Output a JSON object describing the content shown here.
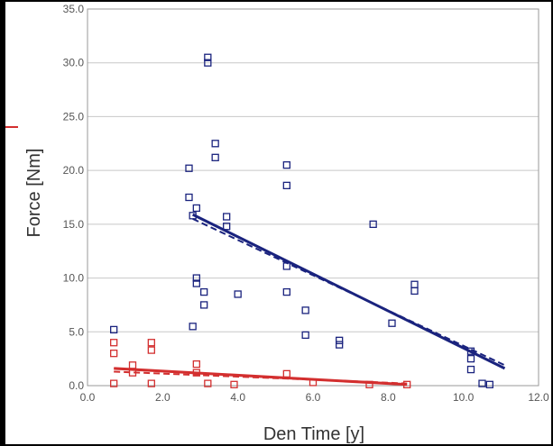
{
  "chart_data": {
    "type": "scatter",
    "xlabel": "Den Time [y]",
    "ylabel": "Force [Nm]",
    "xlim": [
      0,
      12
    ],
    "ylim": [
      0,
      35
    ],
    "xticks": [
      0,
      2,
      4,
      6,
      8,
      10,
      12
    ],
    "yticks": [
      0,
      5,
      10,
      15,
      20,
      25,
      30,
      35
    ],
    "xtick_labels": [
      "0.0",
      "2.0",
      "4.0",
      "6.0",
      "8.0",
      "10.0",
      "12.0"
    ],
    "ytick_labels": [
      "0.0",
      "5.0",
      "10.0",
      "15.0",
      "20.0",
      "25.0",
      "30.0",
      "35.0"
    ],
    "grid": "horizontal",
    "legend": "none",
    "series": [
      {
        "color": "#1a237e",
        "marker": "square",
        "points": [
          [
            0.7,
            5.2
          ],
          [
            2.7,
            20.2
          ],
          [
            2.7,
            17.5
          ],
          [
            2.9,
            16.5
          ],
          [
            2.8,
            15.8
          ],
          [
            2.9,
            10
          ],
          [
            2.9,
            9.5
          ],
          [
            2.8,
            5.5
          ],
          [
            3.2,
            30.5
          ],
          [
            3.2,
            30
          ],
          [
            3.4,
            22.5
          ],
          [
            3.4,
            21.2
          ],
          [
            3.1,
            8.7
          ],
          [
            3.1,
            7.5
          ],
          [
            3.7,
            15.7
          ],
          [
            3.7,
            14.8
          ],
          [
            4.0,
            8.5
          ],
          [
            5.3,
            20.5
          ],
          [
            5.3,
            18.6
          ],
          [
            5.3,
            11.1
          ],
          [
            5.3,
            8.7
          ],
          [
            5.8,
            7.0
          ],
          [
            5.8,
            4.7
          ],
          [
            6.7,
            4.2
          ],
          [
            6.7,
            3.8
          ],
          [
            7.6,
            15.0
          ],
          [
            8.7,
            9.4
          ],
          [
            8.7,
            8.8
          ],
          [
            8.1,
            5.8
          ],
          [
            10.2,
            3.2
          ],
          [
            10.2,
            2.5
          ],
          [
            10.2,
            1.5
          ],
          [
            10.5,
            0.2
          ],
          [
            10.7,
            0.1
          ]
        ]
      },
      {
        "color": "#d32f2f",
        "marker": "square",
        "points": [
          [
            0.7,
            4.0
          ],
          [
            0.7,
            3.0
          ],
          [
            0.7,
            0.2
          ],
          [
            1.2,
            1.9
          ],
          [
            1.2,
            1.2
          ],
          [
            1.7,
            4.0
          ],
          [
            1.7,
            3.3
          ],
          [
            1.7,
            0.2
          ],
          [
            2.9,
            2.0
          ],
          [
            2.9,
            1.2
          ],
          [
            3.2,
            0.2
          ],
          [
            3.9,
            0.1
          ],
          [
            5.3,
            1.1
          ],
          [
            6.0,
            0.3
          ],
          [
            7.5,
            0.1
          ],
          [
            8.5,
            0.1
          ]
        ]
      }
    ],
    "trendlines": [
      {
        "color": "#1a237e",
        "style": "solid",
        "x": [
          2.8,
          11.1
        ],
        "y": [
          15.9,
          1.6
        ]
      },
      {
        "color": "#1a237e",
        "style": "dashed",
        "x": [
          2.8,
          11.1
        ],
        "y": [
          15.5,
          1.9
        ]
      },
      {
        "color": "#d32f2f",
        "style": "solid",
        "x": [
          0.7,
          8.5
        ],
        "y": [
          1.6,
          0.1
        ]
      },
      {
        "color": "#d32f2f",
        "style": "dashed",
        "x": [
          0.7,
          8.5
        ],
        "y": [
          1.3,
          0.2
        ]
      }
    ]
  }
}
